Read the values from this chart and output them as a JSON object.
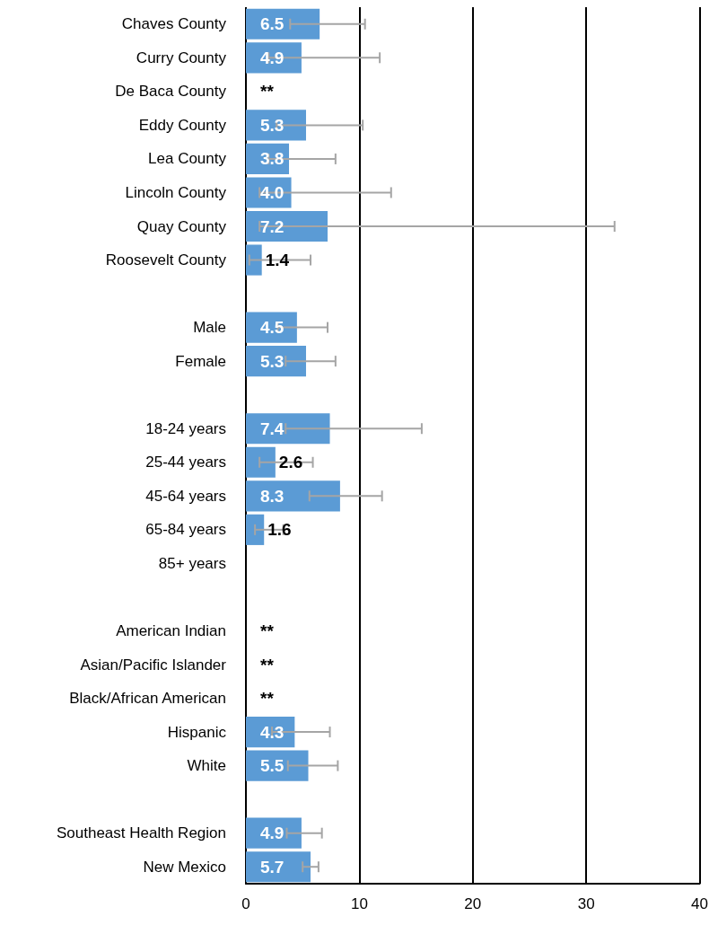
{
  "chart_data": {
    "type": "bar",
    "orientation": "horizontal",
    "categories": [
      "Chaves County",
      "Curry County",
      "De Baca County",
      "Eddy County",
      "Lea County",
      "Lincoln County",
      "Quay County",
      "Roosevelt County",
      null,
      "Male",
      "Female",
      null,
      "18-24 years",
      "25-44 years",
      "45-64 years",
      "65-84 years",
      "85+ years",
      null,
      "American Indian",
      "Asian/Pacific Islander",
      "Black/African American",
      "Hispanic",
      "White",
      null,
      "Southeast Health Region",
      "New Mexico"
    ],
    "values": [
      6.5,
      4.9,
      null,
      5.3,
      3.8,
      4.0,
      7.2,
      1.4,
      null,
      4.5,
      5.3,
      null,
      7.4,
      2.6,
      8.3,
      1.6,
      null,
      null,
      null,
      null,
      null,
      4.3,
      5.5,
      null,
      4.9,
      5.7
    ],
    "value_labels": [
      "6.5",
      "4.9",
      "**",
      "5.3",
      "3.8",
      "4.0",
      "7.2",
      "1.4",
      null,
      "4.5",
      "5.3",
      null,
      "7.4",
      "2.6",
      "8.3",
      "1.6",
      null,
      null,
      "**",
      "**",
      "**",
      "4.3",
      "5.5",
      null,
      "4.9",
      "5.7"
    ],
    "errors": [
      [
        3.9,
        10.5
      ],
      [
        2.0,
        11.8
      ],
      null,
      [
        2.7,
        10.3
      ],
      [
        2.0,
        7.9
      ],
      [
        1.2,
        12.8
      ],
      [
        1.2,
        32.5
      ],
      [
        0.3,
        5.7
      ],
      null,
      [
        2.8,
        7.2
      ],
      [
        3.5,
        7.9
      ],
      null,
      [
        3.5,
        15.5
      ],
      [
        1.2,
        5.9
      ],
      [
        5.6,
        12.0
      ],
      [
        0.8,
        3.3
      ],
      null,
      null,
      null,
      null,
      null,
      [
        2.3,
        7.4
      ],
      [
        3.7,
        8.1
      ],
      null,
      [
        3.6,
        6.7
      ],
      [
        5.0,
        6.4
      ]
    ],
    "color": "#5b9bd5",
    "xlim": [
      0,
      40
    ],
    "xticks": [
      0,
      10,
      20,
      30,
      40
    ],
    "grid": "x"
  }
}
